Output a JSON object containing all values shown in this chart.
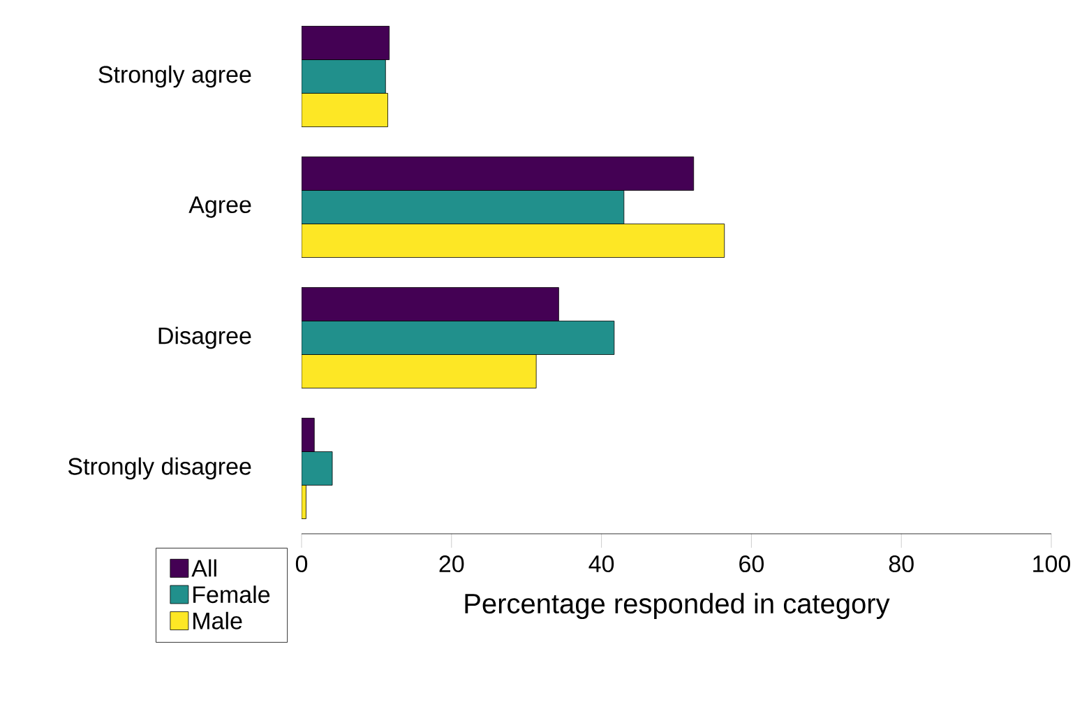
{
  "chart_data": {
    "type": "bar",
    "orientation": "horizontal",
    "categories": [
      "Strongly agree",
      "Agree",
      "Disagree",
      "Strongly disagree"
    ],
    "series": [
      {
        "name": "All",
        "color": "#440154",
        "values": [
          11.7,
          52.3,
          34.3,
          1.7
        ]
      },
      {
        "name": "Female",
        "color": "#21908c",
        "values": [
          11.2,
          43.0,
          41.7,
          4.1
        ]
      },
      {
        "name": "Male",
        "color": "#fde725",
        "values": [
          11.5,
          56.4,
          31.3,
          0.6
        ]
      }
    ],
    "xlabel": "Percentage responded in category",
    "xlim": [
      0,
      100
    ],
    "xticks": [
      0,
      20,
      40,
      60,
      80,
      100
    ],
    "grid": false,
    "legend": "bottom left"
  }
}
